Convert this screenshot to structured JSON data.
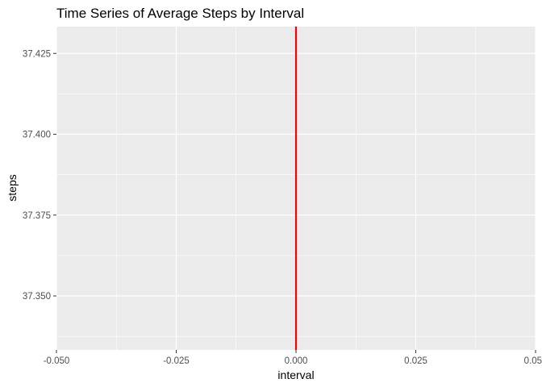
{
  "chart_data": {
    "type": "line",
    "title": "Time Series of Average Steps by Interval",
    "xlabel": "interval",
    "ylabel": "steps",
    "xlim": [
      -0.05,
      0.05
    ],
    "ylim": [
      37.3333,
      37.4333
    ],
    "x_ticks": [
      {
        "value": -0.05,
        "label": "-0.050"
      },
      {
        "value": -0.025,
        "label": "-0.025"
      },
      {
        "value": 0.0,
        "label": "0.000"
      },
      {
        "value": 0.025,
        "label": "0.025"
      },
      {
        "value": 0.05,
        "label": "0.050"
      }
    ],
    "y_ticks": [
      {
        "value": 37.35,
        "label": "37.350"
      },
      {
        "value": 37.375,
        "label": "37.375"
      },
      {
        "value": 37.4,
        "label": "37.400"
      },
      {
        "value": 37.425,
        "label": "37.425"
      }
    ],
    "grid": true,
    "background_color": "#ebebeb",
    "grid_color": "#ffffff",
    "series": [
      {
        "color": "#ff0000",
        "points": [
          {
            "x": 0.0,
            "y": 37.3333
          },
          {
            "x": 0.0,
            "y": 37.4333
          }
        ]
      }
    ]
  }
}
